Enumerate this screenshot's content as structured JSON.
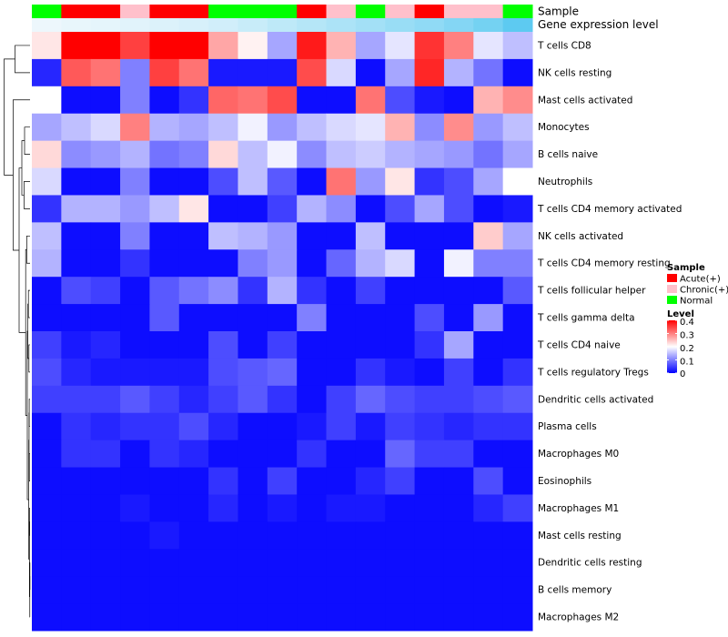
{
  "chart_data": {
    "type": "heatmap",
    "annotation_labels": [
      "Sample",
      "Gene expression level"
    ],
    "rows": [
      "T cells CD8",
      "NK cells resting",
      "Mast cells activated",
      "Monocytes",
      "B cells naive",
      "Neutrophils",
      "T cells CD4 memory activated",
      "NK cells activated",
      "T cells CD4 memory resting",
      "T cells follicular helper",
      "T cells gamma delta",
      "T cells CD4 naive",
      "T cells regulatory  Tregs",
      "Dendritic cells activated",
      "Plasma cells",
      "Macrophages M0",
      "Eosinophils",
      "Macrophages M1",
      "Mast cells resting",
      "Dendritic cells resting",
      "B cells memory",
      "Macrophages M2"
    ],
    "sample_groups": [
      "Normal",
      "Acute(+)",
      "Acute(+)",
      "Chronic(+)",
      "Acute(+)",
      "Acute(+)",
      "Normal",
      "Normal",
      "Normal",
      "Acute(+)",
      "Chronic(+)",
      "Normal",
      "Chronic(+)",
      "Acute(+)",
      "Chronic(+)",
      "Chronic(+)",
      "Normal"
    ],
    "gene_expression_level": [
      0.02,
      0.05,
      0.07,
      0.1,
      0.13,
      0.16,
      0.2,
      0.26,
      0.32,
      0.38,
      0.44,
      0.5,
      0.56,
      0.62,
      0.7,
      0.8,
      0.95
    ],
    "values": [
      [
        0.22,
        0.4,
        0.4,
        0.35,
        0.4,
        0.4,
        0.27,
        0.21,
        0.13,
        0.38,
        0.26,
        0.13,
        0.18,
        0.36,
        0.3,
        0.18,
        0.15
      ],
      [
        0.03,
        0.33,
        0.31,
        0.1,
        0.35,
        0.31,
        0.02,
        0.02,
        0.02,
        0.34,
        0.17,
        0.01,
        0.13,
        0.37,
        0.14,
        0.09,
        0.01
      ],
      [
        0.2,
        0.01,
        0.01,
        0.1,
        0.01,
        0.04,
        0.32,
        0.31,
        0.34,
        0.01,
        0.01,
        0.31,
        0.06,
        0.02,
        0.01,
        0.26,
        0.29
      ],
      [
        0.13,
        0.15,
        0.17,
        0.3,
        0.14,
        0.13,
        0.15,
        0.19,
        0.12,
        0.15,
        0.17,
        0.18,
        0.26,
        0.11,
        0.29,
        0.12,
        0.15
      ],
      [
        0.23,
        0.11,
        0.12,
        0.14,
        0.09,
        0.1,
        0.23,
        0.15,
        0.19,
        0.11,
        0.15,
        0.16,
        0.14,
        0.13,
        0.12,
        0.09,
        0.13
      ],
      [
        0.17,
        0.01,
        0.01,
        0.1,
        0.01,
        0.01,
        0.06,
        0.15,
        0.07,
        0.01,
        0.31,
        0.12,
        0.22,
        0.04,
        0.06,
        0.13,
        0.2
      ],
      [
        0.04,
        0.14,
        0.14,
        0.12,
        0.15,
        0.22,
        0.01,
        0.01,
        0.05,
        0.14,
        0.11,
        0.01,
        0.06,
        0.13,
        0.06,
        0.01,
        0.02
      ],
      [
        0.15,
        0.01,
        0.01,
        0.1,
        0.01,
        0.01,
        0.15,
        0.14,
        0.12,
        0.01,
        0.01,
        0.15,
        0.01,
        0.01,
        0.01,
        0.24,
        0.13
      ],
      [
        0.14,
        0.01,
        0.01,
        0.04,
        0.01,
        0.01,
        0.01,
        0.1,
        0.12,
        0.01,
        0.08,
        0.14,
        0.17,
        0.01,
        0.19,
        0.1,
        0.1
      ],
      [
        0.01,
        0.06,
        0.05,
        0.01,
        0.07,
        0.09,
        0.11,
        0.04,
        0.14,
        0.04,
        0.01,
        0.05,
        0.01,
        0.01,
        0.01,
        0.01,
        0.07
      ],
      [
        0.01,
        0.01,
        0.01,
        0.01,
        0.07,
        0.01,
        0.01,
        0.01,
        0.01,
        0.1,
        0.01,
        0.01,
        0.01,
        0.06,
        0.01,
        0.12,
        0.01
      ],
      [
        0.05,
        0.02,
        0.03,
        0.01,
        0.01,
        0.01,
        0.06,
        0.01,
        0.05,
        0.01,
        0.01,
        0.01,
        0.01,
        0.04,
        0.13,
        0.01,
        0.01
      ],
      [
        0.06,
        0.03,
        0.02,
        0.02,
        0.02,
        0.02,
        0.06,
        0.07,
        0.08,
        0.01,
        0.01,
        0.04,
        0.02,
        0.01,
        0.05,
        0.01,
        0.04
      ],
      [
        0.05,
        0.05,
        0.05,
        0.07,
        0.05,
        0.03,
        0.05,
        0.07,
        0.04,
        0.01,
        0.05,
        0.08,
        0.06,
        0.05,
        0.05,
        0.06,
        0.07
      ],
      [
        0.01,
        0.04,
        0.03,
        0.04,
        0.04,
        0.06,
        0.03,
        0.01,
        0.01,
        0.02,
        0.05,
        0.02,
        0.05,
        0.04,
        0.03,
        0.04,
        0.04
      ],
      [
        0.01,
        0.04,
        0.04,
        0.01,
        0.04,
        0.03,
        0.01,
        0.01,
        0.01,
        0.04,
        0.01,
        0.01,
        0.08,
        0.05,
        0.05,
        0.01,
        0.01
      ],
      [
        0.01,
        0.01,
        0.01,
        0.01,
        0.01,
        0.01,
        0.04,
        0.01,
        0.05,
        0.01,
        0.01,
        0.03,
        0.05,
        0.01,
        0.01,
        0.06,
        0.01
      ],
      [
        0.01,
        0.01,
        0.01,
        0.02,
        0.01,
        0.01,
        0.03,
        0.01,
        0.02,
        0.01,
        0.02,
        0.02,
        0.01,
        0.01,
        0.01,
        0.03,
        0.05
      ],
      [
        0.01,
        0.01,
        0.01,
        0.01,
        0.02,
        0.01,
        0.01,
        0.01,
        0.01,
        0.01,
        0.01,
        0.01,
        0.01,
        0.01,
        0.01,
        0.01,
        0.01
      ],
      [
        0.01,
        0.01,
        0.01,
        0.01,
        0.01,
        0.01,
        0.01,
        0.01,
        0.01,
        0.01,
        0.01,
        0.01,
        0.01,
        0.01,
        0.01,
        0.01,
        0.01
      ],
      [
        0.01,
        0.01,
        0.01,
        0.01,
        0.01,
        0.01,
        0.01,
        0.01,
        0.01,
        0.01,
        0.01,
        0.01,
        0.01,
        0.01,
        0.01,
        0.01,
        0.01
      ],
      [
        0.01,
        0.01,
        0.01,
        0.01,
        0.01,
        0.01,
        0.01,
        0.01,
        0.01,
        0.01,
        0.01,
        0.01,
        0.01,
        0.01,
        0.01,
        0.01,
        0.01
      ]
    ],
    "color_scale": {
      "low": "#0000ff",
      "mid": "#ffffff",
      "high": "#ff0000",
      "range": [
        0,
        0.4
      ]
    },
    "sample_legend": {
      "title": "Sample",
      "entries": [
        {
          "label": "Acute(+)",
          "color": "#ff0000"
        },
        {
          "label": "Chronic(+)",
          "color": "#ffc0cb"
        },
        {
          "label": "Normal",
          "color": "#00ff00"
        }
      ]
    },
    "level_legend": {
      "title": "Level",
      "ticks": [
        "0.4",
        "0.3",
        "0.2",
        "0.1",
        "0"
      ]
    },
    "expression_colors": {
      "low": "#f0f8fc",
      "high": "#55c8f0"
    }
  }
}
